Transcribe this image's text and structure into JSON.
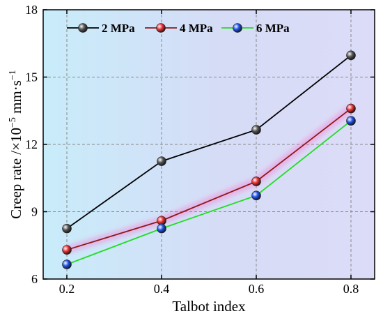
{
  "chart_data": {
    "type": "line",
    "xlabel": "Talbot index",
    "ylabel_prefix": "Creep rate /×10",
    "ylabel_exp": "−5",
    "ylabel_unit": " mm·s",
    "ylabel_unit_exp": "−1",
    "x": [
      0.2,
      0.4,
      0.6,
      0.8
    ],
    "x_tick_labels": [
      "0.2",
      "0.4",
      "0.6",
      "0.8"
    ],
    "xlim": [
      0.15,
      0.85
    ],
    "ylim": [
      6,
      18
    ],
    "y_ticks": [
      6,
      9,
      12,
      15,
      18
    ],
    "y_tick_labels": [
      "6",
      "9",
      "12",
      "15",
      "18"
    ],
    "grid": true,
    "legend_position": "top-left",
    "series": [
      {
        "name": "2 MPa",
        "values": [
          8.25,
          11.25,
          12.65,
          15.97
        ],
        "line_color": "#000000",
        "marker_color": "#555555",
        "glow": false
      },
      {
        "name": "4 MPa",
        "values": [
          7.3,
          8.6,
          10.35,
          13.6
        ],
        "line_color": "#8B1A1A",
        "marker_color": "#ee3333",
        "glow": true
      },
      {
        "name": "6 MPa",
        "values": [
          6.65,
          8.25,
          9.72,
          13.05
        ],
        "line_color": "#22dd22",
        "marker_color": "#2255ee",
        "glow": false
      }
    ],
    "background_gradient": [
      "#c8ecfa",
      "#d6dcf6",
      "#dcdcf8"
    ]
  }
}
